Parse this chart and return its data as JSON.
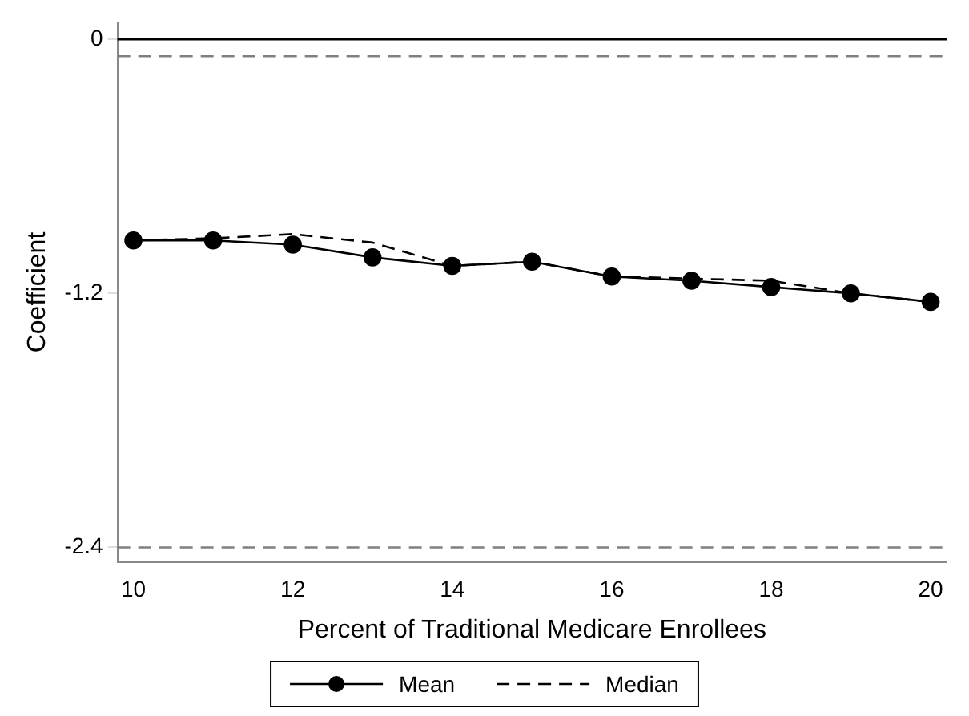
{
  "chart_data": {
    "type": "line",
    "xlabel": "Percent of Traditional Medicare Enrollees",
    "ylabel": "Coefficient",
    "x": [
      10,
      11,
      12,
      13,
      14,
      15,
      16,
      17,
      18,
      19,
      20
    ],
    "series": [
      {
        "name": "Mean",
        "color": "#000000",
        "marker": "circle",
        "line_style": "solid",
        "values": [
          -0.95,
          -0.95,
          -0.97,
          -1.03,
          -1.07,
          -1.05,
          -1.12,
          -1.14,
          -1.17,
          -1.2,
          -1.24
        ]
      },
      {
        "name": "Median",
        "color": "#000000",
        "marker": "none",
        "line_style": "dashed",
        "values": [
          -0.95,
          -0.94,
          -0.92,
          -0.96,
          -1.07,
          -1.05,
          -1.12,
          -1.13,
          -1.14,
          -1.2,
          -1.24
        ]
      }
    ],
    "xlim": [
      9.8,
      20.2
    ],
    "xticks": [
      10,
      12,
      14,
      16,
      18,
      20
    ],
    "ylim": [
      -2.47,
      0.08
    ],
    "yticks": [
      {
        "value": 0,
        "label": "0"
      },
      {
        "value": -1.2,
        "label": "-1.2"
      },
      {
        "value": -2.4,
        "label": "-2.4"
      }
    ],
    "ref_lines": [
      {
        "axis": "y",
        "value": 0,
        "color": "#000000",
        "line_style": "solid"
      },
      {
        "axis": "y",
        "value": -0.08,
        "color": "#808080",
        "line_style": "dashed"
      },
      {
        "axis": "y",
        "value": -2.4,
        "color": "#808080",
        "line_style": "dashed"
      }
    ],
    "grid": false,
    "legend": "bottom"
  }
}
